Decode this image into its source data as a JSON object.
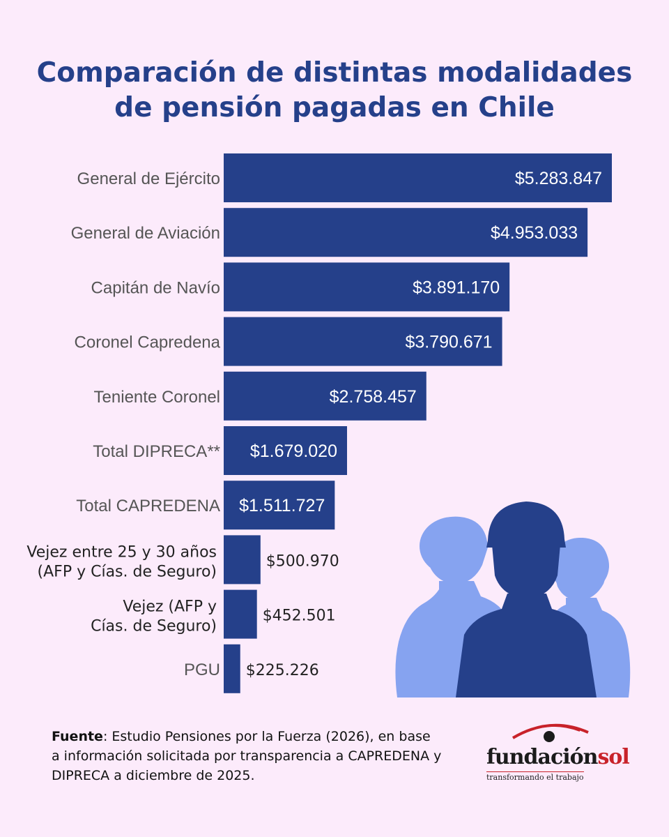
{
  "title": {
    "line1": "Comparación de distintas modalidades",
    "line2": "de pensión pagadas en Chile"
  },
  "colors": {
    "background": "#fcebfb",
    "bar": "#25408a",
    "title": "#25408a",
    "silhouette_light": "#86a3f0",
    "silhouette_dark": "#25408a",
    "logo_red": "#c8222a"
  },
  "chart_data": {
    "type": "bar",
    "orientation": "horizontal",
    "categories": [
      [
        "General de Ejército"
      ],
      [
        "General de Aviación"
      ],
      [
        "Capitán de Navío"
      ],
      [
        "Coronel Capredena"
      ],
      [
        "Teniente Coronel"
      ],
      [
        "Total DIPRECA**"
      ],
      [
        "Total CAPREDENA"
      ],
      [
        "Vejez entre 25 y 30 años",
        "(AFP y Cías. de Seguro)"
      ],
      [
        "Vejez (AFP y",
        "Cías. de Seguro)"
      ],
      [
        "PGU"
      ]
    ],
    "values": [
      5283847,
      4953033,
      3891170,
      3790671,
      2758457,
      1679020,
      1511727,
      500970,
      452501,
      225226
    ],
    "value_labels": [
      "$5.283.847",
      "$4.953.033",
      "$3.891.170",
      "$3.790.671",
      "$2.758.457",
      "$1.679.020",
      "$1.511.727",
      "$500.970",
      "$452.501",
      "$225.226"
    ],
    "xlim": [
      0,
      5283847
    ],
    "grid": false,
    "legend": "none"
  },
  "source": {
    "label": "Fuente",
    "text": ": Estudio Pensiones por la Fuerza (2026), en base a información solicitada por transparencia a CAPREDENA y DIPRECA a diciembre de 2025."
  },
  "logo": {
    "word_part1": "fundación",
    "word_part2": "sol",
    "tagline": "transformando el trabajo"
  },
  "icons": [
    "military-silhouettes-illustration",
    "eye-logo-icon"
  ]
}
